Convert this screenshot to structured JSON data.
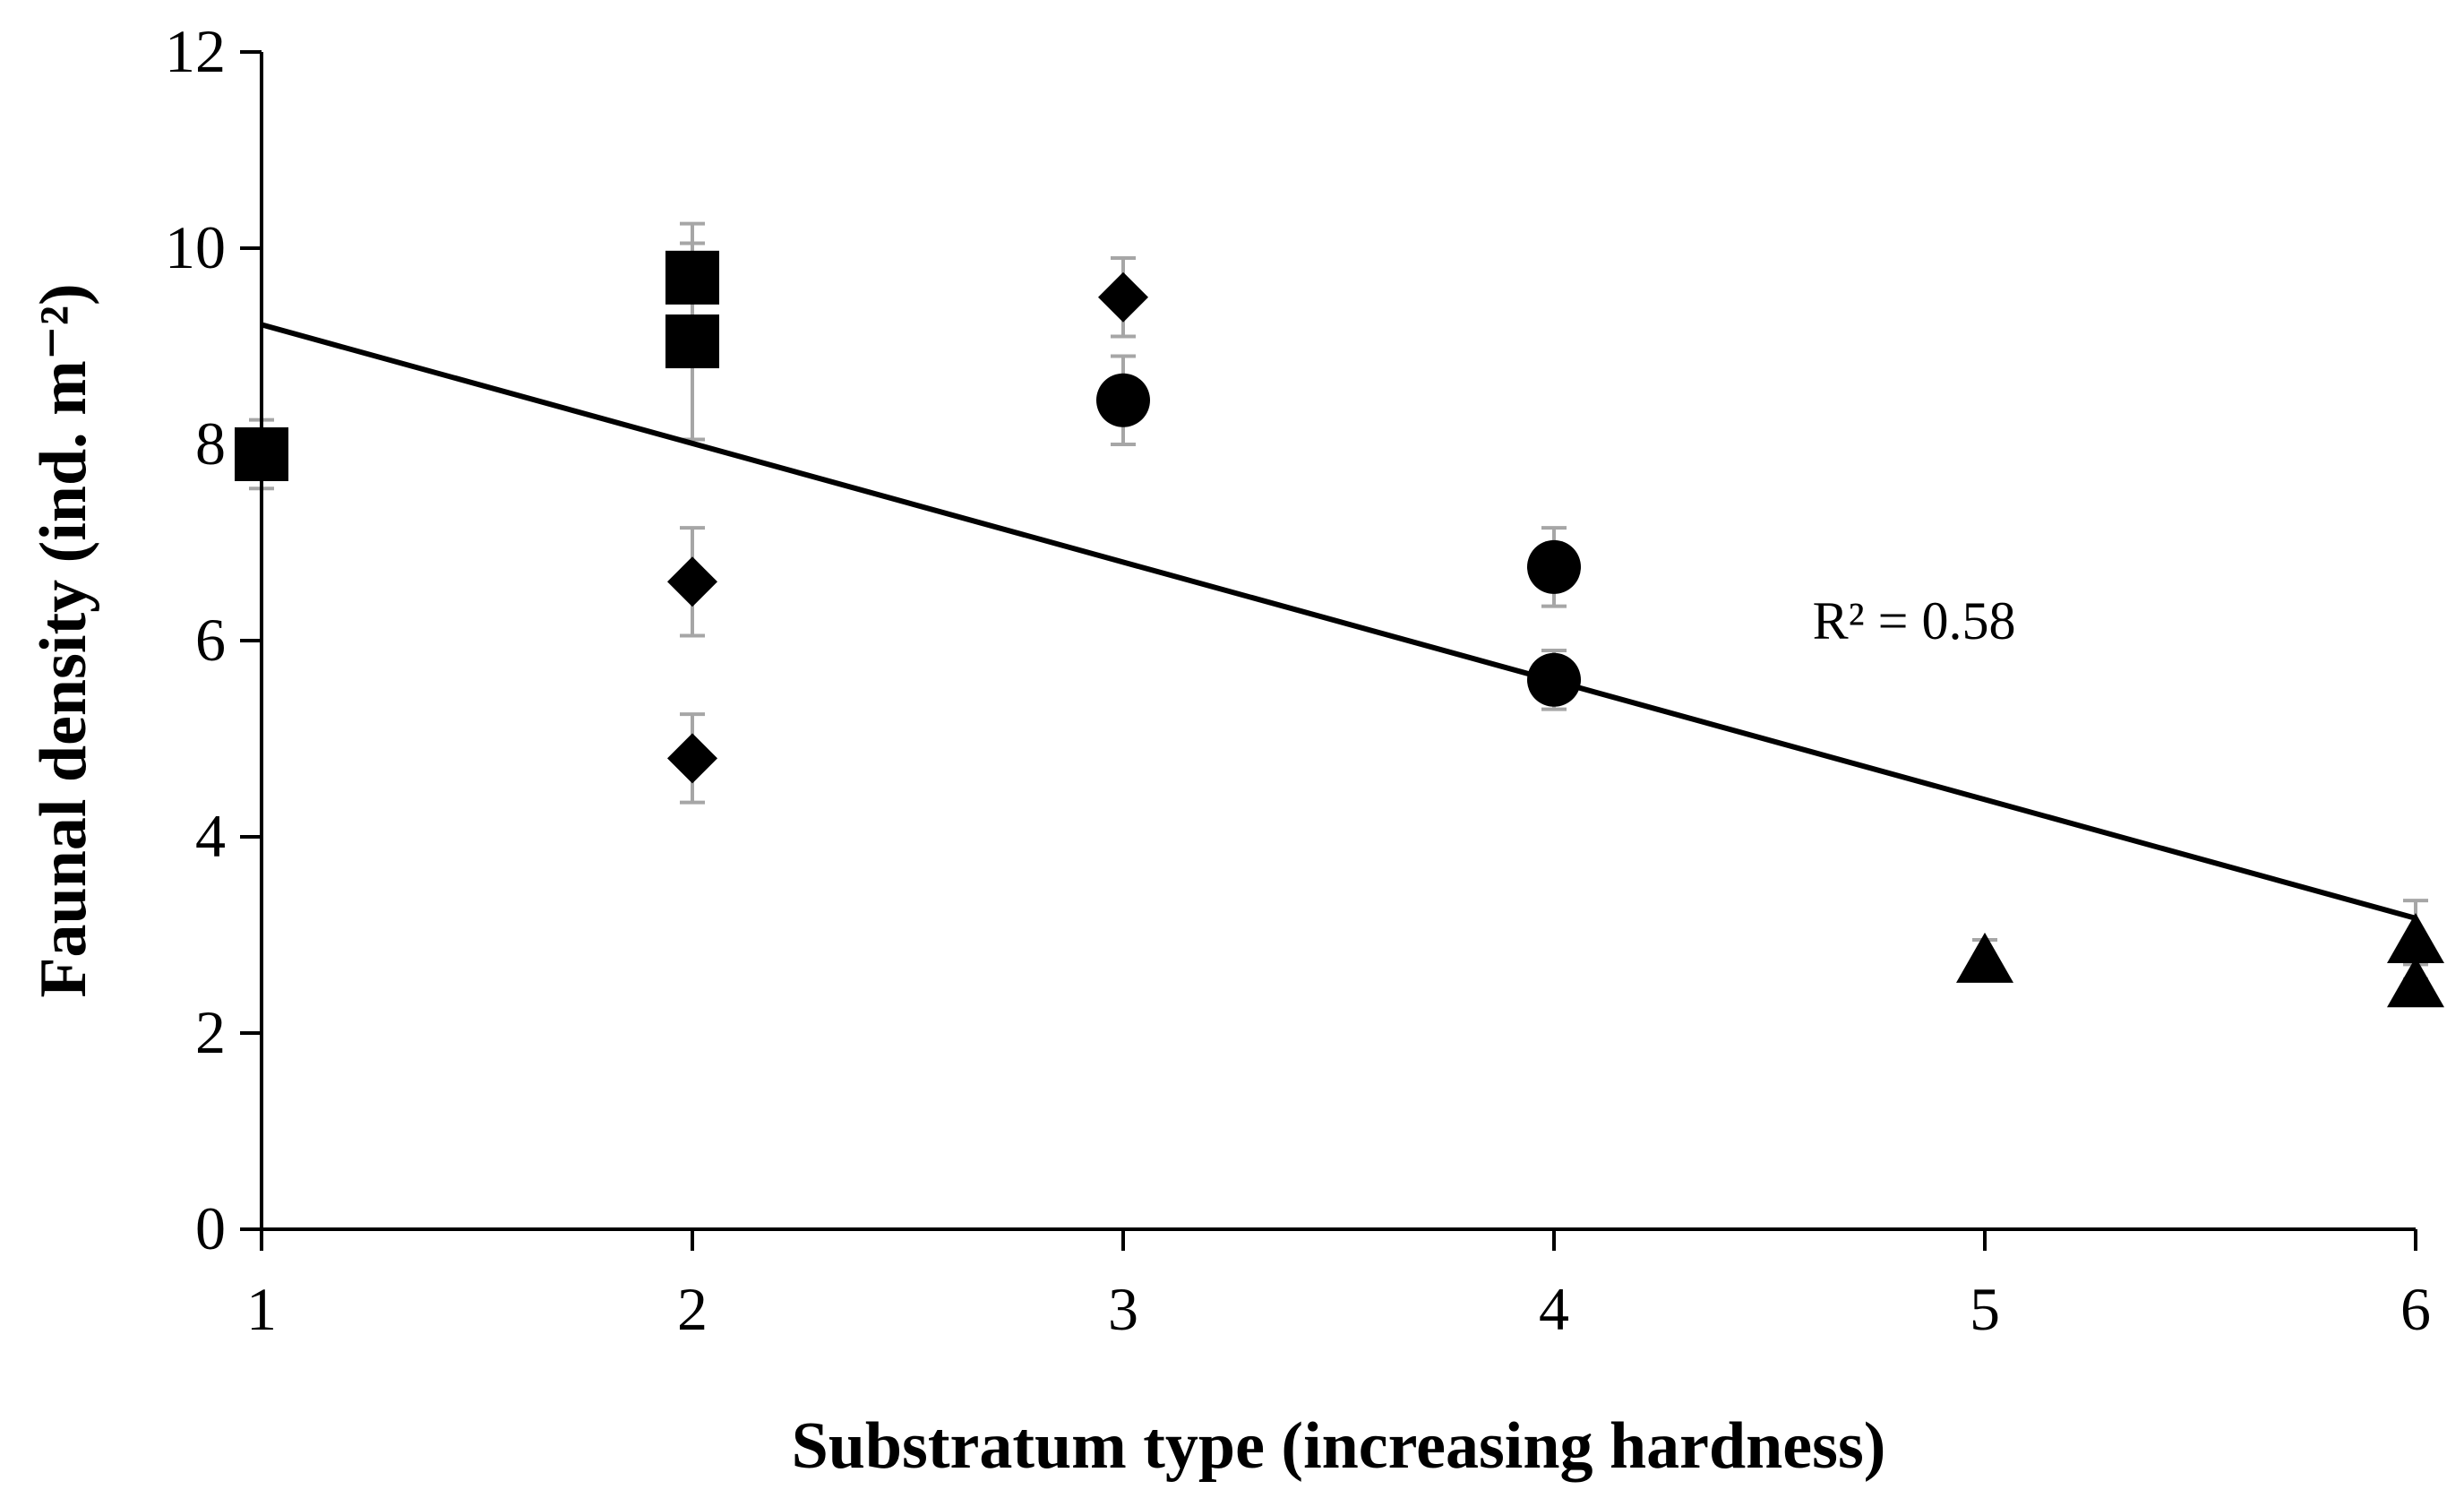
{
  "chart_data": {
    "type": "scatter",
    "title": "",
    "xlabel": "Substratum type (increasing hardness)",
    "ylabel": "Faunal density (ind. m⁻²)",
    "xlim": [
      1,
      6
    ],
    "ylim": [
      0,
      12
    ],
    "xticks": [
      "1",
      "2",
      "3",
      "4",
      "5",
      "6"
    ],
    "yticks": [
      "0",
      "2",
      "4",
      "6",
      "8",
      "10",
      "12"
    ],
    "grid": false,
    "series": [
      {
        "name": "square",
        "marker": "square",
        "points": [
          {
            "x": 1,
            "y": 7.9,
            "err": 0.35
          },
          {
            "x": 2,
            "y": 9.7,
            "err": 0.55
          },
          {
            "x": 2,
            "y": 9.05,
            "err": 1.0
          }
        ]
      },
      {
        "name": "diamond",
        "marker": "diamond",
        "points": [
          {
            "x": 2,
            "y": 6.6,
            "err": 0.55
          },
          {
            "x": 2,
            "y": 4.8,
            "err": 0.45
          },
          {
            "x": 3,
            "y": 9.5,
            "err": 0.4
          }
        ]
      },
      {
        "name": "circle",
        "marker": "circle",
        "points": [
          {
            "x": 3,
            "y": 8.45,
            "err": 0.45
          },
          {
            "x": 4,
            "y": 6.75,
            "err": 0.4
          },
          {
            "x": 4,
            "y": 5.6,
            "err": 0.3
          }
        ]
      },
      {
        "name": "triangle",
        "marker": "triangle",
        "points": [
          {
            "x": 5,
            "y": 2.75,
            "err": 0.2
          },
          {
            "x": 6,
            "y": 2.95,
            "err": 0.4
          },
          {
            "x": 6,
            "y": 2.5,
            "err": 0.2
          }
        ]
      }
    ],
    "trendline": {
      "type": "linear",
      "x": [
        1,
        6
      ],
      "y": [
        9.22,
        3.17
      ]
    },
    "annotations": [
      {
        "text": "R² = 0.58",
        "x": 4.6,
        "y": 6.2
      }
    ]
  }
}
